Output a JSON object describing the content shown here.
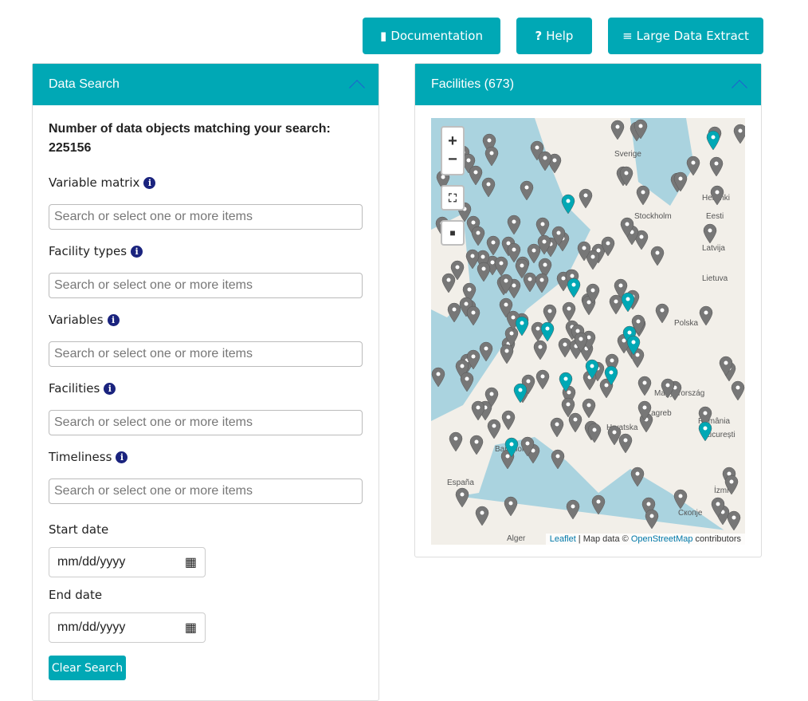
{
  "toolbar": {
    "documentation": "Documentation",
    "help": "Help",
    "extract": "Large Data Extract"
  },
  "search_panel": {
    "title": "Data Search",
    "count_label": "Number of data objects matching your search:",
    "count": "225156",
    "filters": [
      {
        "label": "Variable matrix",
        "placeholder": "Search or select one or more items"
      },
      {
        "label": "Facility types",
        "placeholder": "Search or select one or more items"
      },
      {
        "label": "Variables",
        "placeholder": "Search or select one or more items"
      },
      {
        "label": "Facilities",
        "placeholder": "Search or select one or more items"
      },
      {
        "label": "Timeliness",
        "placeholder": "Search or select one or more items"
      }
    ],
    "start_date_label": "Start date",
    "end_date_label": "End date",
    "date_placeholder": "mm/dd/yyyy",
    "clear": "Clear Search"
  },
  "map_panel": {
    "title": "Facilities (673)",
    "zoom_in": "+",
    "zoom_out": "−",
    "labels": [
      "Sverige",
      "Stockholm",
      "Helsinki",
      "Eesti",
      "Latvija",
      "Lietuva",
      "Polska",
      "Magyarország",
      "Zagreb",
      "Hrvatska",
      "România",
      "București",
      "Скопје",
      "España",
      "Barcelona",
      "Alger",
      "İzmi"
    ],
    "attribution": {
      "leaflet": "Leaflet",
      "sep": " | Map data © ",
      "osm": "OpenStreetMap",
      "suffix": " contributors"
    },
    "colors": {
      "marker": "#777777",
      "marker_selected": "#00a8b5",
      "sea": "#aad3df",
      "land": "#f2efe9"
    }
  }
}
